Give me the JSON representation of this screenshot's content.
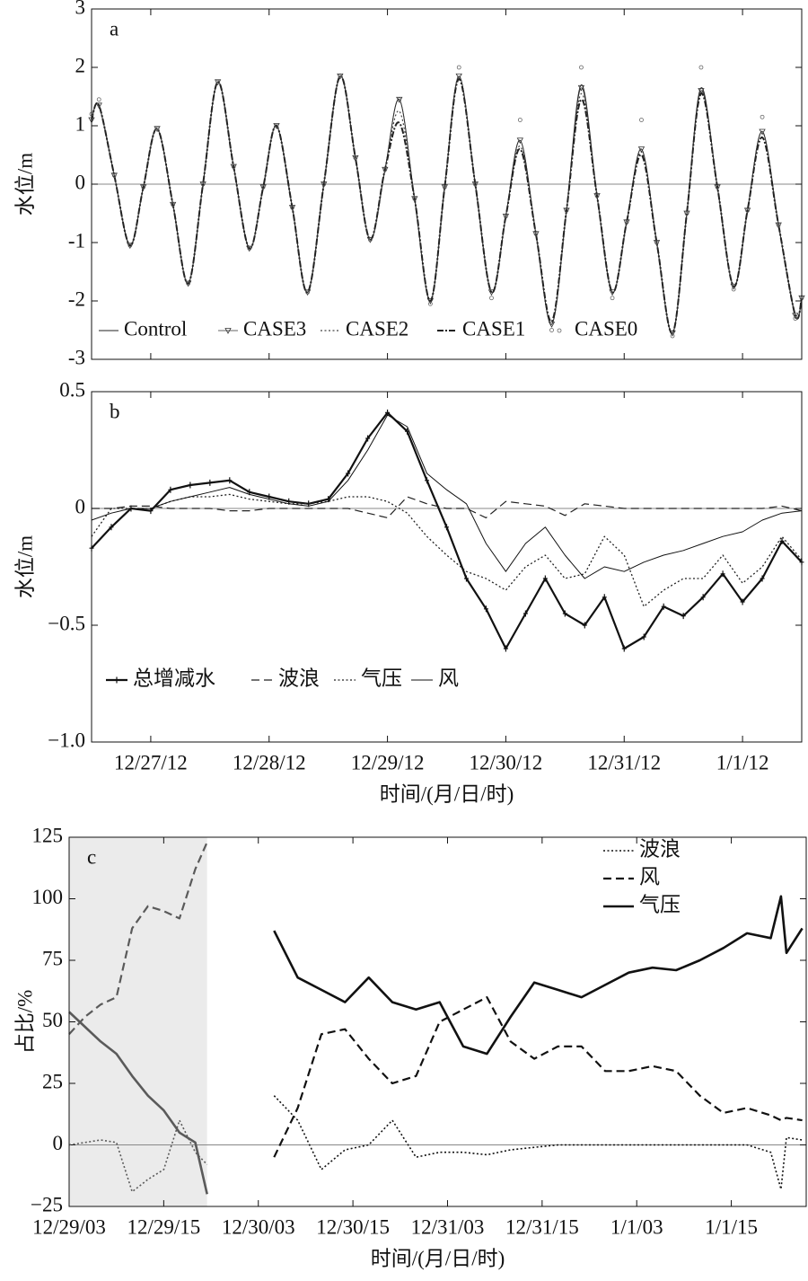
{
  "chart_data": [
    {
      "type": "line",
      "title": "a",
      "ylabel": "水位/m",
      "smooth": true,
      "zero_line": true,
      "xlim": [
        0,
        144
      ],
      "xticks": [
        12,
        36,
        60,
        84,
        108,
        132
      ],
      "ylim": [
        -3,
        3
      ],
      "yticks": [
        -3,
        -2,
        -1,
        0,
        1,
        2,
        3
      ],
      "x": [
        0,
        1.5,
        4.6,
        7.8,
        10.5,
        13.3,
        16.5,
        19.6,
        22.6,
        25.6,
        28.8,
        32,
        34.8,
        37.5,
        40.7,
        43.8,
        47.1,
        50.4,
        53.5,
        56.5,
        59.5,
        62.4,
        65.5,
        68.7,
        71.6,
        74.5,
        77.8,
        81.1,
        84,
        86.9,
        90.1,
        93.3,
        96.3,
        99.3,
        102.5,
        105.6,
        108.5,
        111.5,
        114.6,
        117.8,
        120.7,
        123.6,
        126.9,
        130.2,
        133,
        136,
        139.3,
        142.7,
        144
      ],
      "series": [
        {
          "name": "Control",
          "color": "#222222",
          "style": "solid",
          "linewidth": 1,
          "values": [
            1.1,
            1.35,
            0.15,
            -1.05,
            -0.05,
            0.95,
            -0.35,
            -1.7,
            0.0,
            1.75,
            0.3,
            -1.1,
            -0.05,
            1.0,
            -0.4,
            -1.85,
            0.0,
            1.85,
            0.45,
            -0.95,
            0.25,
            1.45,
            -0.25,
            -2.0,
            -0.05,
            1.85,
            0.0,
            -1.85,
            -0.55,
            0.75,
            -0.85,
            -2.4,
            -0.45,
            1.7,
            -0.2,
            -1.85,
            -0.65,
            0.6,
            -1.0,
            -2.55,
            -0.5,
            1.65,
            -0.05,
            -1.75,
            -0.45,
            0.9,
            -0.7,
            -2.25,
            -1.95
          ]
        },
        {
          "name": "CASE3",
          "color": "#333333",
          "style": "solid",
          "linewidth": 0.8,
          "marker": "triangle",
          "values": [
            1.1,
            1.35,
            0.15,
            -1.05,
            -0.05,
            0.95,
            -0.35,
            -1.7,
            0.0,
            1.75,
            0.3,
            -1.1,
            -0.05,
            1.0,
            -0.4,
            -1.85,
            0.0,
            1.85,
            0.45,
            -0.95,
            0.25,
            1.45,
            -0.25,
            -2.0,
            -0.05,
            1.85,
            0.0,
            -1.85,
            -0.55,
            0.75,
            -0.85,
            -2.4,
            -0.45,
            1.65,
            -0.2,
            -1.85,
            -0.65,
            0.6,
            -1.0,
            -2.55,
            -0.5,
            1.6,
            -0.05,
            -1.75,
            -0.45,
            0.9,
            -0.7,
            -2.25,
            -1.95
          ]
        },
        {
          "name": "CASE2",
          "color": "#444444",
          "style": "dotted",
          "linewidth": 1.2,
          "values": [
            1.1,
            1.35,
            0.15,
            -1.05,
            -0.05,
            0.95,
            -0.35,
            -1.7,
            0.0,
            1.75,
            0.3,
            -1.1,
            -0.05,
            1.0,
            -0.4,
            -1.85,
            0.0,
            1.85,
            0.45,
            -0.95,
            0.25,
            1.25,
            -0.25,
            -2.0,
            -0.05,
            1.85,
            0.0,
            -1.85,
            -0.55,
            0.65,
            -0.85,
            -2.4,
            -0.45,
            1.55,
            -0.2,
            -1.85,
            -0.65,
            0.55,
            -1.0,
            -2.55,
            -0.5,
            1.6,
            -0.05,
            -1.75,
            -0.45,
            0.9,
            -0.7,
            -2.25,
            -1.95
          ]
        },
        {
          "name": "CASE1",
          "color": "#222222",
          "style": "dashdot",
          "linewidth": 2,
          "values": [
            1.1,
            1.35,
            0.15,
            -1.05,
            -0.05,
            0.95,
            -0.35,
            -1.7,
            0.0,
            1.75,
            0.3,
            -1.1,
            -0.05,
            1.0,
            -0.4,
            -1.85,
            0.0,
            1.85,
            0.45,
            -0.95,
            0.25,
            1.05,
            -0.25,
            -2.0,
            -0.05,
            1.8,
            0.0,
            -1.85,
            -0.55,
            0.6,
            -0.85,
            -2.35,
            -0.45,
            1.45,
            -0.2,
            -1.85,
            -0.65,
            0.5,
            -1.0,
            -2.55,
            -0.5,
            1.55,
            -0.05,
            -1.75,
            -0.45,
            0.8,
            -0.7,
            -2.25,
            -1.95
          ]
        },
        {
          "name": "CASE0",
          "color": "#666666",
          "style": "none",
          "linewidth": 0,
          "marker": "circle",
          "values": [
            1.2,
            1.45,
            0.15,
            -1.05,
            -0.05,
            0.95,
            -0.35,
            -1.7,
            0.0,
            1.75,
            0.3,
            -1.1,
            -0.05,
            1.0,
            -0.4,
            -1.85,
            0.0,
            1.85,
            0.45,
            -0.95,
            0.25,
            1.45,
            -0.25,
            -2.05,
            -0.05,
            2.0,
            0.0,
            -1.95,
            -0.55,
            1.1,
            -0.85,
            -2.5,
            -0.45,
            2.0,
            -0.2,
            -1.95,
            -0.65,
            1.1,
            -1.0,
            -2.6,
            -0.5,
            2.0,
            -0.05,
            -1.8,
            -0.45,
            1.15,
            -0.7,
            -2.3,
            -1.95
          ]
        }
      ]
    },
    {
      "type": "line",
      "title": "b",
      "ylabel": "水位/m",
      "xlabel": "时间/(月/日/时)",
      "zero_line": true,
      "xlim": [
        0,
        144
      ],
      "xticks": [
        {
          "value": 12,
          "label": "12/27/12"
        },
        {
          "value": 36,
          "label": "12/28/12"
        },
        {
          "value": 60,
          "label": "12/29/12"
        },
        {
          "value": 84,
          "label": "12/30/12"
        },
        {
          "value": 108,
          "label": "12/31/12"
        },
        {
          "value": 132,
          "label": "1/1/12"
        }
      ],
      "ylim": [
        -1,
        0.5
      ],
      "yticks": [
        {
          "value": -1,
          "label": "−1.0"
        },
        {
          "value": -0.5,
          "label": "−0.5"
        },
        0,
        0.5
      ],
      "x": [
        0,
        4,
        8,
        12,
        16,
        20,
        24,
        28,
        32,
        36,
        40,
        44,
        48,
        52,
        56,
        60,
        64,
        68,
        72,
        76,
        80,
        84,
        88,
        92,
        96,
        100,
        104,
        108,
        112,
        116,
        120,
        124,
        128,
        132,
        136,
        140,
        144
      ],
      "series": [
        {
          "name": "总增减水",
          "color": "#111111",
          "style": "solid",
          "linewidth": 2.2,
          "marker": "plus",
          "values": [
            -0.17,
            -0.08,
            0.0,
            -0.01,
            0.08,
            0.1,
            0.11,
            0.12,
            0.07,
            0.05,
            0.03,
            0.02,
            0.04,
            0.15,
            0.3,
            0.41,
            0.33,
            0.12,
            -0.08,
            -0.3,
            -0.43,
            -0.6,
            -0.45,
            -0.3,
            -0.45,
            -0.5,
            -0.38,
            -0.6,
            -0.55,
            -0.42,
            -0.46,
            -0.38,
            -0.28,
            -0.4,
            -0.3,
            -0.14,
            -0.23
          ]
        },
        {
          "name": "波浪",
          "color": "#222222",
          "style": "dashed",
          "linewidth": 1.2,
          "values": [
            0.0,
            0.0,
            0.01,
            0.01,
            0.0,
            0.0,
            0.0,
            -0.01,
            -0.01,
            0.0,
            0.0,
            0.0,
            0.0,
            0.0,
            -0.02,
            -0.04,
            0.05,
            0.02,
            0.0,
            0.0,
            -0.04,
            0.03,
            0.02,
            0.01,
            -0.03,
            0.02,
            0.01,
            0.0,
            0.0,
            0.0,
            0.0,
            0.0,
            0.0,
            0.0,
            0.0,
            0.01,
            -0.01
          ]
        },
        {
          "name": "气压",
          "color": "#222222",
          "style": "dotted",
          "linewidth": 1.3,
          "values": [
            -0.12,
            0.0,
            0.0,
            0.0,
            0.03,
            0.05,
            0.05,
            0.06,
            0.04,
            0.03,
            0.02,
            0.02,
            0.03,
            0.05,
            0.05,
            0.03,
            -0.02,
            -0.12,
            -0.2,
            -0.27,
            -0.3,
            -0.35,
            -0.25,
            -0.2,
            -0.3,
            -0.28,
            -0.12,
            -0.2,
            -0.42,
            -0.35,
            -0.3,
            -0.3,
            -0.2,
            -0.32,
            -0.25,
            -0.12,
            -0.22
          ]
        },
        {
          "name": "风",
          "color": "#111111",
          "style": "solid",
          "linewidth": 1,
          "values": [
            -0.05,
            -0.02,
            0.0,
            0.0,
            0.03,
            0.05,
            0.07,
            0.09,
            0.06,
            0.04,
            0.02,
            0.01,
            0.03,
            0.12,
            0.25,
            0.4,
            0.35,
            0.15,
            0.08,
            0.02,
            -0.15,
            -0.27,
            -0.15,
            -0.08,
            -0.2,
            -0.3,
            -0.25,
            -0.27,
            -0.23,
            -0.2,
            -0.18,
            -0.15,
            -0.12,
            -0.1,
            -0.05,
            -0.02,
            -0.01
          ]
        }
      ]
    },
    {
      "type": "line",
      "title": "c",
      "ylabel": "占比/%",
      "xlabel": "时间/(月/日/时)",
      "zero_line": true,
      "shade": [
        51,
        68.5
      ],
      "shade_color": "#ebebeb",
      "shade_line_color": "#5a5a5a",
      "legend": "upper right",
      "xlim": [
        51,
        144.5
      ],
      "xticks": [
        {
          "value": 51,
          "label": "12/29/03"
        },
        {
          "value": 63,
          "label": "12/29/15"
        },
        {
          "value": 75,
          "label": "12/30/03"
        },
        {
          "value": 87,
          "label": "12/30/15"
        },
        {
          "value": 99,
          "label": "12/31/03"
        },
        {
          "value": 111,
          "label": "12/31/15"
        },
        {
          "value": 123,
          "label": "1/1/03"
        },
        {
          "value": 135,
          "label": "1/1/15"
        }
      ],
      "ylim": [
        -25,
        125
      ],
      "yticks": [
        {
          "value": -25,
          "label": "−25"
        },
        0,
        25,
        50,
        75,
        100,
        125
      ],
      "x": [
        51,
        53,
        55,
        57,
        59,
        61,
        63,
        65,
        67,
        68.5,
        72,
        77,
        80,
        83,
        86,
        89,
        92,
        95,
        98,
        101,
        104,
        107,
        110,
        113,
        116,
        119,
        122,
        125,
        128,
        131,
        134,
        137,
        140,
        141.3,
        142,
        144
      ],
      "series": [
        {
          "name": "波浪",
          "color": "#111111",
          "style": "dotted",
          "linewidth": 1.6,
          "values": [
            0,
            1,
            2,
            1,
            -19,
            -14,
            -10,
            10,
            -3,
            -8,
            null,
            20,
            10,
            -10,
            -2,
            0,
            10,
            -5,
            -3,
            -3,
            -4,
            -2,
            -1,
            0,
            0,
            0,
            0,
            0,
            0,
            0,
            0,
            0,
            -3,
            -18,
            3,
            2
          ]
        },
        {
          "name": "风",
          "color": "#111111",
          "style": "dashed",
          "linewidth": 2.2,
          "values": [
            45,
            52,
            57,
            60,
            88,
            97,
            95,
            92,
            112,
            123,
            null,
            -5,
            15,
            45,
            47,
            35,
            25,
            28,
            50,
            55,
            60,
            42,
            35,
            40,
            40,
            30,
            30,
            32,
            30,
            20,
            13,
            15,
            12,
            10,
            11,
            10
          ]
        },
        {
          "name": "气压",
          "color": "#111111",
          "style": "solid",
          "linewidth": 2.6,
          "values": [
            54,
            48,
            42,
            37,
            28,
            20,
            14,
            5,
            1,
            -20,
            null,
            87,
            68,
            63,
            58,
            68,
            58,
            55,
            58,
            40,
            37,
            52,
            66,
            63,
            60,
            65,
            70,
            72,
            71,
            75,
            80,
            86,
            84,
            101,
            78,
            88
          ]
        }
      ]
    }
  ]
}
